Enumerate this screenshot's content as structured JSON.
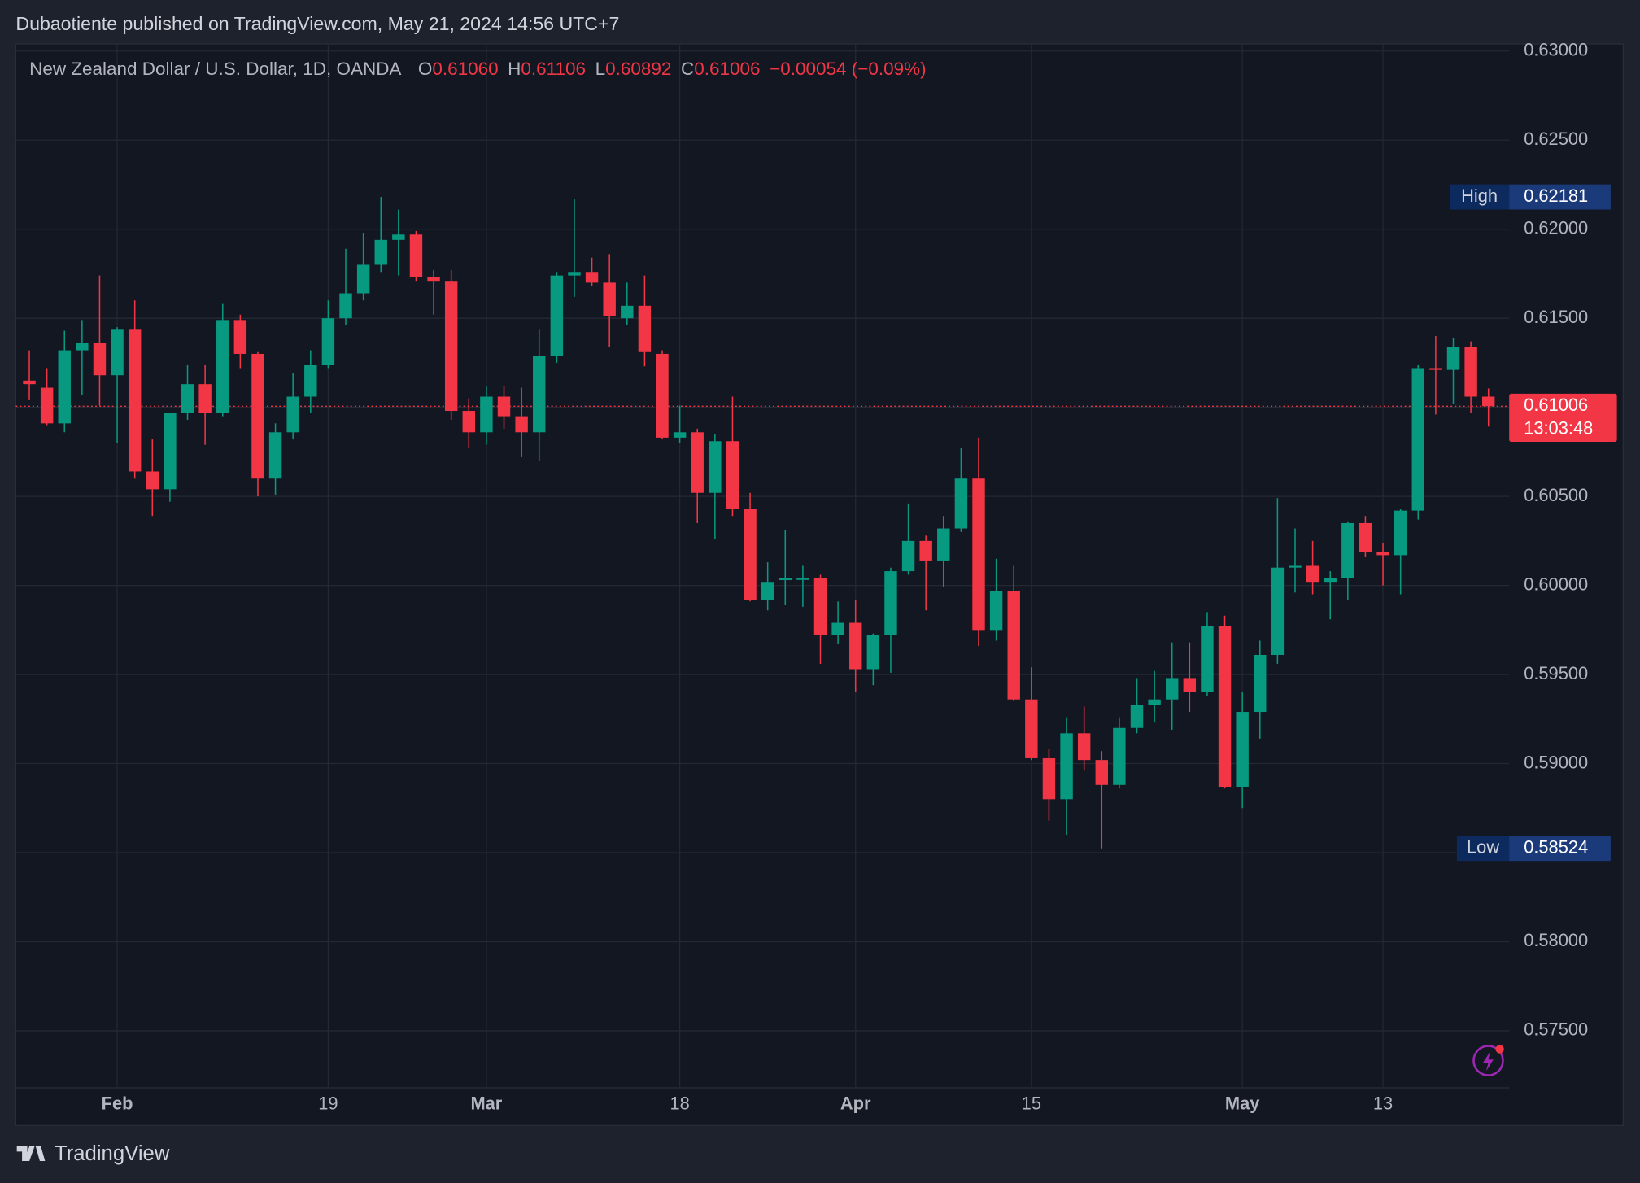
{
  "header": {
    "publisher": "Dubaotiente published on TradingView.com, May 21, 2024 14:56 UTC+7"
  },
  "footer": {
    "brand": "TradingView"
  },
  "chart_data": {
    "type": "candlestick",
    "legend": {
      "symbol": "New Zealand Dollar / U.S. Dollar, 1D, OANDA",
      "items": [
        {
          "label": "O",
          "value": "0.61060"
        },
        {
          "label": "H",
          "value": "0.61106"
        },
        {
          "label": "L",
          "value": "0.60892"
        },
        {
          "label": "C",
          "value": "0.61006"
        }
      ],
      "change": "−0.00054 (−0.09%)"
    },
    "categories": [
      null,
      null,
      null,
      null,
      null,
      "Feb",
      null,
      null,
      null,
      null,
      null,
      null,
      null,
      null,
      null,
      null,
      null,
      "19",
      null,
      null,
      null,
      null,
      null,
      null,
      null,
      null,
      "Mar",
      null,
      null,
      null,
      null,
      null,
      null,
      null,
      null,
      null,
      null,
      "18",
      null,
      null,
      null,
      null,
      null,
      null,
      null,
      null,
      null,
      "Apr",
      null,
      null,
      null,
      null,
      null,
      null,
      null,
      null,
      null,
      "15",
      null,
      null,
      null,
      null,
      null,
      null,
      null,
      null,
      null,
      null,
      null,
      "May",
      null,
      null,
      null,
      null,
      null,
      null,
      null,
      "13",
      null,
      null,
      null,
      null,
      null,
      null
    ],
    "open": [
      0.6115,
      0.6111,
      0.6091,
      0.6132,
      0.6136,
      0.6118,
      0.6144,
      0.6064,
      0.6054,
      0.6097,
      0.6113,
      0.6097,
      0.6149,
      0.613,
      0.606,
      0.6086,
      0.6106,
      0.6124,
      0.615,
      0.6164,
      0.618,
      0.6194,
      0.6197,
      0.6173,
      0.6171,
      0.6098,
      0.6086,
      0.6106,
      0.6095,
      0.6086,
      0.6129,
      0.6174,
      0.6176,
      0.617,
      0.615,
      0.6157,
      0.613,
      0.6083,
      0.6086,
      0.6052,
      0.6081,
      0.6043,
      0.5992,
      0.6003,
      0.6004,
      0.6004,
      0.5972,
      0.5979,
      0.5953,
      0.5972,
      0.6008,
      0.6025,
      0.6014,
      0.6032,
      0.606,
      0.5975,
      0.5997,
      0.5936,
      0.5903,
      0.588,
      0.5917,
      0.5902,
      0.5888,
      0.592,
      0.5933,
      0.5936,
      0.5948,
      0.594,
      0.5977,
      0.5887,
      0.5929,
      0.5961,
      0.601,
      0.6011,
      0.6002,
      0.6004,
      0.6035,
      0.6019,
      0.6017,
      0.6042,
      0.6122,
      0.6121,
      0.6134,
      0.6106
    ],
    "high": [
      0.6132,
      0.6122,
      0.6143,
      0.6149,
      0.6174,
      0.6145,
      0.616,
      0.6082,
      0.6097,
      0.6124,
      0.6124,
      0.6158,
      0.6152,
      0.6131,
      0.6091,
      0.6119,
      0.6132,
      0.616,
      0.6189,
      0.6198,
      0.62181,
      0.6211,
      0.6199,
      0.6177,
      0.6177,
      0.6105,
      0.6112,
      0.6112,
      0.6111,
      0.6144,
      0.6176,
      0.6217,
      0.6184,
      0.6186,
      0.617,
      0.6174,
      0.6132,
      0.6101,
      0.6088,
      0.6085,
      0.6106,
      0.6052,
      0.6013,
      0.6031,
      0.6011,
      0.6006,
      0.5991,
      0.5992,
      0.5973,
      0.601,
      0.6046,
      0.6028,
      0.6039,
      0.6077,
      0.6083,
      0.6015,
      0.6011,
      0.5954,
      0.5908,
      0.5926,
      0.5932,
      0.5907,
      0.5926,
      0.5948,
      0.5952,
      0.5968,
      0.5968,
      0.5985,
      0.5983,
      0.594,
      0.5969,
      0.6049,
      0.6032,
      0.6025,
      0.6008,
      0.6036,
      0.6039,
      0.6024,
      0.6043,
      0.6124,
      0.614,
      0.6139,
      0.6137,
      0.61106
    ],
    "low": [
      0.6104,
      0.609,
      0.6086,
      0.6107,
      0.6101,
      0.608,
      0.606,
      0.6039,
      0.6047,
      0.6093,
      0.6079,
      0.6095,
      0.6122,
      0.605,
      0.6051,
      0.6082,
      0.6097,
      0.6122,
      0.6146,
      0.616,
      0.6176,
      0.6174,
      0.6171,
      0.6152,
      0.6093,
      0.6077,
      0.6079,
      0.6088,
      0.6072,
      0.607,
      0.6125,
      0.6162,
      0.6168,
      0.6134,
      0.6146,
      0.6123,
      0.6082,
      0.608,
      0.6035,
      0.6026,
      0.6039,
      0.5991,
      0.5986,
      0.5989,
      0.5988,
      0.5956,
      0.5967,
      0.594,
      0.5944,
      0.5951,
      0.6006,
      0.5986,
      0.5999,
      0.603,
      0.5966,
      0.5969,
      0.5935,
      0.5902,
      0.5868,
      0.586,
      0.5896,
      0.58524,
      0.5886,
      0.5917,
      0.5923,
      0.5919,
      0.5929,
      0.5938,
      0.5886,
      0.5875,
      0.5914,
      0.5956,
      0.5996,
      0.5995,
      0.5981,
      0.5992,
      0.6016,
      0.6,
      0.5995,
      0.6037,
      0.6096,
      0.6102,
      0.6097,
      0.60892
    ],
    "close": [
      0.6113,
      0.6091,
      0.6132,
      0.6136,
      0.6118,
      0.6144,
      0.6064,
      0.6054,
      0.6097,
      0.6113,
      0.6097,
      0.6149,
      0.613,
      0.606,
      0.6086,
      0.6106,
      0.6124,
      0.615,
      0.6164,
      0.618,
      0.6194,
      0.6197,
      0.6173,
      0.6171,
      0.6098,
      0.6086,
      0.6106,
      0.6095,
      0.6086,
      0.6129,
      0.6174,
      0.6176,
      0.617,
      0.6151,
      0.6157,
      0.6131,
      0.6083,
      0.6086,
      0.6052,
      0.6081,
      0.6043,
      0.5992,
      0.6002,
      0.6004,
      0.6004,
      0.5972,
      0.5979,
      0.5953,
      0.5972,
      0.6008,
      0.6025,
      0.6014,
      0.6032,
      0.606,
      0.5975,
      0.5997,
      0.5936,
      0.5903,
      0.588,
      0.5917,
      0.5902,
      0.5888,
      0.592,
      0.5933,
      0.5936,
      0.5948,
      0.594,
      0.5977,
      0.5887,
      0.5929,
      0.5961,
      0.601,
      0.6011,
      0.6002,
      0.6004,
      0.6035,
      0.6019,
      0.6017,
      0.6042,
      0.6122,
      0.6121,
      0.6134,
      0.6106,
      0.61006
    ],
    "up_color": "#089981",
    "down_color": "#f23645",
    "ylim": [
      0.5718,
      0.6304
    ],
    "yticks": [
      {
        "value": 0.575,
        "label": "0.57500"
      },
      {
        "value": 0.58,
        "label": "0.58000"
      },
      {
        "value": 0.585,
        "label": "0.58500"
      },
      {
        "value": 0.59,
        "label": "0.59000"
      },
      {
        "value": 0.595,
        "label": "0.59500"
      },
      {
        "value": 0.6,
        "label": "0.60000"
      },
      {
        "value": 0.605,
        "label": "0.60500"
      },
      {
        "value": 0.61,
        "label": "0.61000"
      },
      {
        "value": 0.615,
        "label": "0.61500"
      },
      {
        "value": 0.62,
        "label": "0.62000"
      },
      {
        "value": 0.625,
        "label": "0.62500"
      },
      {
        "value": 0.63,
        "label": "0.63000"
      }
    ],
    "grid": true,
    "high_marker": {
      "label": "High",
      "value": 0.62181
    },
    "low_marker": {
      "label": "Low",
      "value": 0.58524
    },
    "last_price": {
      "value": 0.61006,
      "countdown": "13:03:48"
    }
  }
}
